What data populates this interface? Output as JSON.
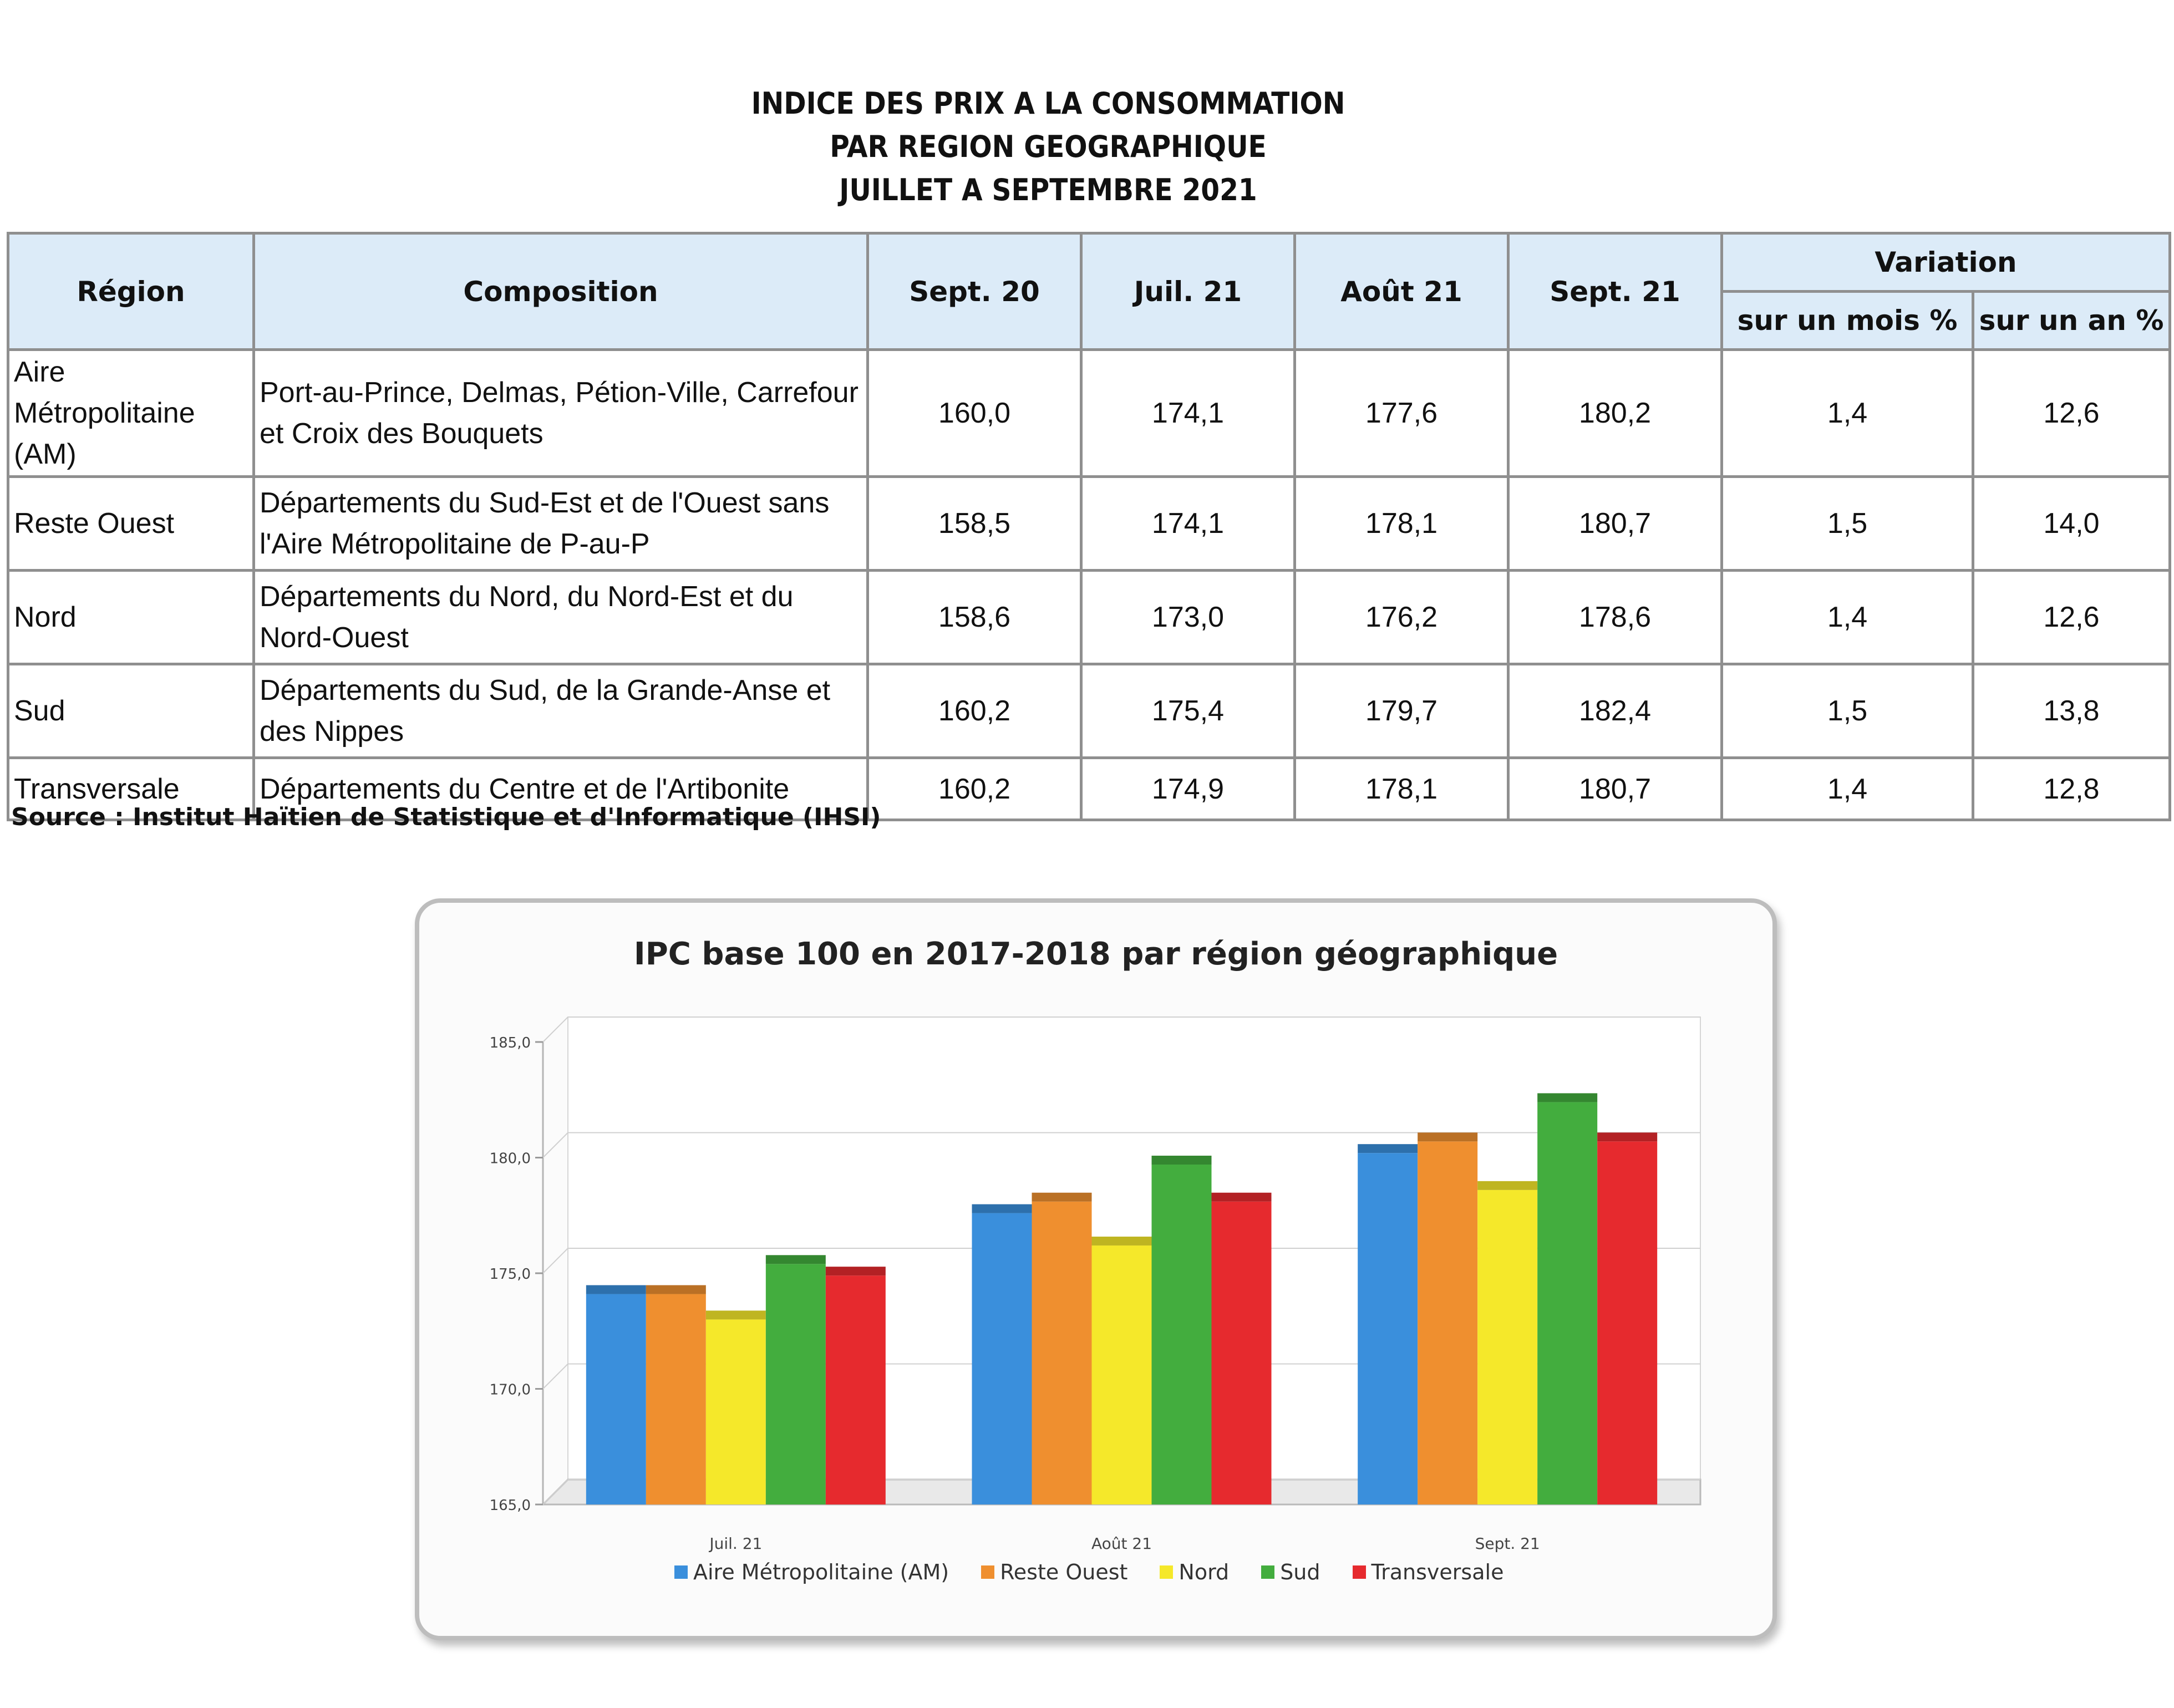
{
  "page_title": {
    "line1": "INDICE DES PRIX A LA CONSOMMATION",
    "line2": "PAR REGION GEOGRAPHIQUE",
    "line3": "JUILLET A SEPTEMBRE 2021"
  },
  "table": {
    "headers": {
      "region": "Région",
      "composition": "Composition",
      "sept20": "Sept. 20",
      "juil21": "Juil. 21",
      "aout21": "Août 21",
      "sept21": "Sept. 21",
      "variation": "Variation",
      "var_mois": "sur un mois %",
      "var_an": "sur un an %"
    },
    "rows": [
      {
        "region": "Aire Métropolitaine (AM)",
        "composition": "Port-au-Prince, Delmas, Pétion-Ville, Carrefour et Croix des Bouquets",
        "sept20": "160,0",
        "juil21": "174,1",
        "aout21": "177,6",
        "sept21": "180,2",
        "var_mois": "1,4",
        "var_an": "12,6"
      },
      {
        "region": "Reste Ouest",
        "composition": "Départements du Sud-Est et de l'Ouest sans l'Aire Métropolitaine de P-au-P",
        "sept20": "158,5",
        "juil21": "174,1",
        "aout21": "178,1",
        "sept21": "180,7",
        "var_mois": "1,5",
        "var_an": "14,0"
      },
      {
        "region": "Nord",
        "composition": "Départements du Nord, du Nord-Est et du Nord-Ouest",
        "sept20": "158,6",
        "juil21": "173,0",
        "aout21": "176,2",
        "sept21": "178,6",
        "var_mois": "1,4",
        "var_an": "12,6"
      },
      {
        "region": "Sud",
        "composition": "Départements du Sud, de la Grande-Anse et des Nippes",
        "sept20": "160,2",
        "juil21": "175,4",
        "aout21": "179,7",
        "sept21": "182,4",
        "var_mois": "1,5",
        "var_an": "13,8"
      },
      {
        "region": "Transversale",
        "composition": "Départements du Centre et de l'Artibonite",
        "sept20": "160,2",
        "juil21": "174,9",
        "aout21": "178,1",
        "sept21": "180,7",
        "var_mois": "1,4",
        "var_an": "12,8"
      }
    ]
  },
  "source": "Source : Institut Haïtien de Statistique et d'Informatique (IHSI)",
  "chart_data": {
    "type": "bar",
    "title": "IPC base 100 en 2017-2018  par région géographique",
    "xlabel": "",
    "ylabel": "",
    "categories": [
      "Juil. 21",
      "Août 21",
      "Sept. 21"
    ],
    "ylim": [
      165,
      185
    ],
    "yticks": [
      "165,0",
      "170,0",
      "175,0",
      "180,0",
      "185,0"
    ],
    "ytick_values": [
      165,
      170,
      175,
      180,
      185
    ],
    "legend_position": "bottom",
    "style": "3d",
    "series": [
      {
        "name": "Aire Métropolitaine (AM)",
        "color": "#3a8fdc",
        "values": [
          174.1,
          177.6,
          180.2
        ]
      },
      {
        "name": "Reste Ouest",
        "color": "#ef8f2f",
        "values": [
          174.1,
          178.1,
          180.7
        ]
      },
      {
        "name": "Nord",
        "color": "#f5e82a",
        "values": [
          173.0,
          176.2,
          178.6
        ]
      },
      {
        "name": "Sud",
        "color": "#43ad3e",
        "values": [
          175.4,
          179.7,
          182.4
        ]
      },
      {
        "name": "Transversale",
        "color": "#e62a2e",
        "values": [
          174.9,
          178.1,
          180.7
        ]
      }
    ]
  }
}
